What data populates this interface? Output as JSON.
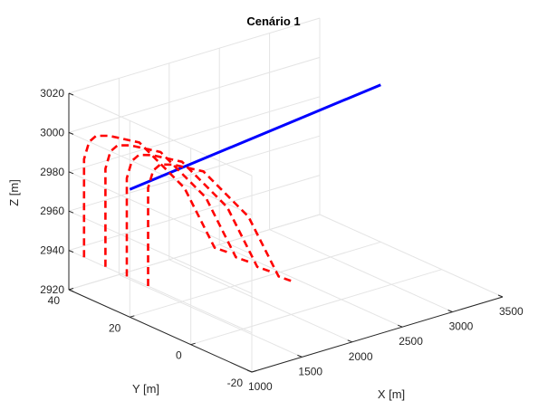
{
  "chart_data": {
    "type": "line3d",
    "title": "Cenário 1",
    "xlabel": "X [m]",
    "ylabel": "Y [m]",
    "zlabel": "Z [m]",
    "xlim": [
      1000,
      3500
    ],
    "ylim": [
      -20,
      40
    ],
    "zlim": [
      2920,
      3020
    ],
    "xticks": [
      "1000",
      "1500",
      "2000",
      "2500",
      "3000",
      "3500"
    ],
    "yticks": [
      "-20",
      "0",
      "20",
      "40"
    ],
    "zticks": [
      "2920",
      "2940",
      "2960",
      "2980",
      "3000",
      "3020"
    ],
    "grid": true,
    "series": [
      {
        "style": "solid",
        "color": "#0000ff",
        "points": [
          [
            1000,
            20,
            2985
          ],
          [
            3500,
            20,
            3000
          ]
        ]
      },
      {
        "style": "dashed",
        "color": "#ff0000",
        "points": [
          [
            1000,
            35,
            2940
          ],
          [
            1000,
            35,
            2970
          ],
          [
            1000,
            35,
            2990
          ],
          [
            1050,
            35,
            2998
          ],
          [
            1120,
            35,
            3000
          ],
          [
            1250,
            35,
            2998
          ],
          [
            1550,
            35,
            2990
          ],
          [
            2000,
            35,
            2960
          ],
          [
            2300,
            35,
            2925
          ],
          [
            2450,
            35,
            2920
          ]
        ]
      },
      {
        "style": "dashed",
        "color": "#ff0000",
        "points": [
          [
            1000,
            28,
            2940
          ],
          [
            1000,
            28,
            2970
          ],
          [
            1000,
            28,
            2990
          ],
          [
            1050,
            28,
            2998
          ],
          [
            1120,
            28,
            3000
          ],
          [
            1250,
            28,
            2998
          ],
          [
            1550,
            28,
            2990
          ],
          [
            2000,
            28,
            2960
          ],
          [
            2300,
            28,
            2925
          ],
          [
            2450,
            28,
            2920
          ]
        ]
      },
      {
        "style": "dashed",
        "color": "#ff0000",
        "points": [
          [
            1000,
            21,
            2940
          ],
          [
            1000,
            21,
            2970
          ],
          [
            1000,
            21,
            2990
          ],
          [
            1050,
            21,
            2998
          ],
          [
            1120,
            21,
            3000
          ],
          [
            1250,
            21,
            2998
          ],
          [
            1550,
            21,
            2990
          ],
          [
            2000,
            21,
            2960
          ],
          [
            2300,
            21,
            2925
          ],
          [
            2450,
            21,
            2920
          ]
        ]
      },
      {
        "style": "dashed",
        "color": "#ff0000",
        "points": [
          [
            1000,
            14,
            2940
          ],
          [
            1000,
            14,
            2970
          ],
          [
            1000,
            14,
            2990
          ],
          [
            1050,
            14,
            2998
          ],
          [
            1120,
            14,
            3000
          ],
          [
            1250,
            14,
            2998
          ],
          [
            1550,
            14,
            2990
          ],
          [
            2000,
            14,
            2960
          ],
          [
            2300,
            14,
            2925
          ],
          [
            2450,
            14,
            2920
          ]
        ]
      }
    ]
  }
}
